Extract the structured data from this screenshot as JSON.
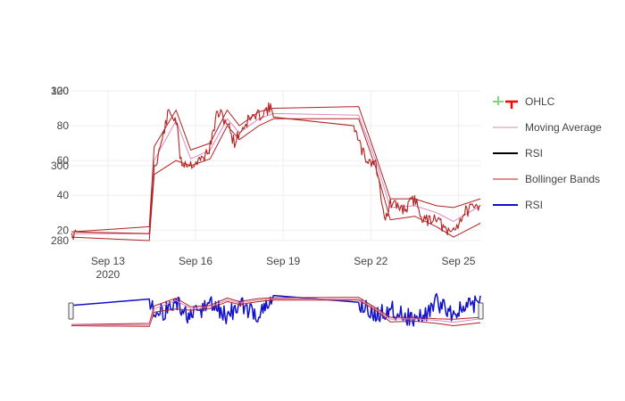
{
  "chart_data": {
    "type": "line",
    "title": "",
    "x_axis": {
      "type": "date",
      "range": [
        "2020-09-11T18:00",
        "2020-09-25T18:00"
      ],
      "ticks": [
        {
          "value": "2020-09-13",
          "label": "Sep 13",
          "sublabel": "2020"
        },
        {
          "value": "2020-09-16",
          "label": "Sep 16"
        },
        {
          "value": "2020-09-19",
          "label": "Sep 19"
        },
        {
          "value": "2020-09-22",
          "label": "Sep 22"
        },
        {
          "value": "2020-09-25",
          "label": "Sep 25"
        }
      ]
    },
    "y_axis_price": {
      "range": [
        14,
        100
      ],
      "ticks": [
        {
          "value": 20,
          "label": "20"
        },
        {
          "value": 40,
          "label": "40"
        },
        {
          "value": 60,
          "label": "60"
        },
        {
          "value": 80,
          "label": "80"
        },
        {
          "value": 100,
          "label": "100"
        }
      ]
    },
    "y_axis_overlay": {
      "range": [
        280,
        320
      ],
      "ticks": [
        {
          "value": 280,
          "label": "280"
        },
        {
          "value": 300,
          "label": "300"
        },
        {
          "value": 320,
          "label": "320"
        }
      ]
    },
    "gridlines": true,
    "legend_position": "right",
    "legend": [
      {
        "name": "OHLC",
        "color": "#ff0000",
        "color2": "#7fd67f",
        "style": "ohlc"
      },
      {
        "name": "Moving Average",
        "color": "#dd88bb",
        "style": "line"
      },
      {
        "name": "RSI",
        "color": "#000000",
        "style": "line-thick"
      },
      {
        "name": "Bollinger Bands",
        "color": "#b22222",
        "style": "line"
      },
      {
        "name": "RSI",
        "color": "#1010cc",
        "style": "line-thick"
      }
    ],
    "price_series": {
      "x": [
        "2020-09-11T18:00",
        "2020-09-11T22:00",
        "2020-09-14T10:00",
        "2020-09-14T14:00",
        "2020-09-14T18:00",
        "2020-09-15T02:00",
        "2020-09-15T08:00",
        "2020-09-15T12:00",
        "2020-09-15T20:00",
        "2020-09-16T04:00",
        "2020-09-16T08:00",
        "2020-09-16T12:00",
        "2020-09-16T18:00",
        "2020-09-17T02:00",
        "2020-09-17T08:00",
        "2020-09-17T12:00",
        "2020-09-17T20:00",
        "2020-09-18T04:00",
        "2020-09-18T12:00",
        "2020-09-18T16:00",
        "2020-09-21T10:00",
        "2020-09-21T14:00",
        "2020-09-21T20:00",
        "2020-09-22T04:00",
        "2020-09-22T12:00",
        "2020-09-22T16:00",
        "2020-09-23T04:00",
        "2020-09-23T12:00",
        "2020-09-23T20:00",
        "2020-09-24T06:00",
        "2020-09-24T14:00",
        "2020-09-24T20:00",
        "2020-09-25T06:00",
        "2020-09-25T12:00",
        "2020-09-25T18:00"
      ],
      "close": [
        18,
        17,
        18,
        56,
        65,
        88,
        83,
        59,
        58,
        60,
        63,
        68,
        88,
        82,
        70,
        76,
        84,
        86,
        90,
        88,
        80,
        70,
        61,
        58,
        26,
        35,
        32,
        38,
        25,
        28,
        18,
        20,
        31,
        32,
        35
      ]
    },
    "moving_average": {
      "x": [
        "2020-09-11T18:00",
        "2020-09-14T10:00",
        "2020-09-14T14:00",
        "2020-09-15T08:00",
        "2020-09-15T20:00",
        "2020-09-16T12:00",
        "2020-09-17T02:00",
        "2020-09-17T12:00",
        "2020-09-18T04:00",
        "2020-09-18T16:00",
        "2020-09-21T14:00",
        "2020-09-22T04:00",
        "2020-09-22T16:00",
        "2020-09-23T12:00",
        "2020-09-24T06:00",
        "2020-09-24T20:00",
        "2020-09-25T18:00"
      ],
      "values": [
        18,
        18,
        60,
        83,
        61,
        66,
        84,
        76,
        84,
        87,
        86,
        60,
        33,
        34,
        30,
        25,
        34
      ]
    },
    "bollinger_upper": {
      "x": [
        "2020-09-11T18:00",
        "2020-09-14T10:00",
        "2020-09-14T14:00",
        "2020-09-15T08:00",
        "2020-09-15T20:00",
        "2020-09-16T12:00",
        "2020-09-17T02:00",
        "2020-09-17T12:00",
        "2020-09-18T04:00",
        "2020-09-18T16:00",
        "2020-09-21T14:00",
        "2020-09-22T04:00",
        "2020-09-22T16:00",
        "2020-09-23T12:00",
        "2020-09-24T06:00",
        "2020-09-24T20:00",
        "2020-09-25T18:00"
      ],
      "values": [
        19,
        22,
        68,
        89,
        66,
        70,
        89,
        80,
        88,
        90,
        91,
        63,
        38,
        38,
        34,
        33,
        38
      ]
    },
    "bollinger_lower": {
      "x": [
        "2020-09-11T18:00",
        "2020-09-14T10:00",
        "2020-09-14T14:00",
        "2020-09-15T08:00",
        "2020-09-15T20:00",
        "2020-09-16T12:00",
        "2020-09-17T02:00",
        "2020-09-17T12:00",
        "2020-09-18T04:00",
        "2020-09-18T16:00",
        "2020-09-21T14:00",
        "2020-09-22T04:00",
        "2020-09-22T16:00",
        "2020-09-23T12:00",
        "2020-09-24T06:00",
        "2020-09-24T20:00",
        "2020-09-25T18:00"
      ],
      "values": [
        16,
        14,
        52,
        60,
        57,
        61,
        80,
        72,
        80,
        84,
        84,
        56,
        26,
        28,
        22,
        16,
        24
      ]
    },
    "rsi_series": {
      "x": [
        "2020-09-11T18:00",
        "2020-09-14T10:00",
        "2020-09-14T16:00",
        "2020-09-15T08:00",
        "2020-09-15T20:00",
        "2020-09-16T12:00",
        "2020-09-17T02:00",
        "2020-09-17T12:00",
        "2020-09-18T04:00",
        "2020-09-18T16:00",
        "2020-09-21T14:00",
        "2020-09-22T04:00",
        "2020-09-22T16:00",
        "2020-09-23T12:00",
        "2020-09-23T20:00",
        "2020-09-24T06:00",
        "2020-09-24T20:00",
        "2020-09-25T18:00"
      ],
      "values": [
        70,
        90,
        40,
        75,
        30,
        78,
        35,
        72,
        40,
        85,
        80,
        35,
        60,
        25,
        40,
        80,
        45,
        85
      ]
    }
  }
}
